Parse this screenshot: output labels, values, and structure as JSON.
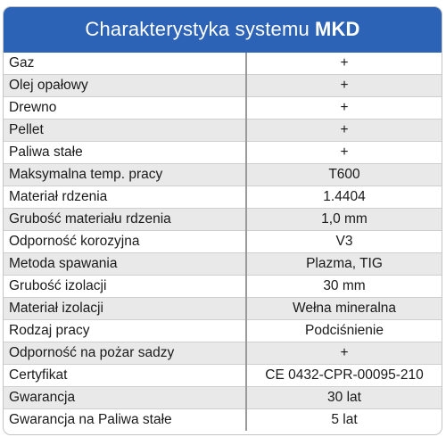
{
  "header": {
    "title_prefix": "Charakterystyka systemu",
    "title_bold": "MKD",
    "background_color": "#2d63b6"
  },
  "rows": [
    {
      "param": "Gaz",
      "value": "+"
    },
    {
      "param": "Olej opałowy",
      "value": "+"
    },
    {
      "param": "Drewno",
      "value": "+"
    },
    {
      "param": "Pellet",
      "value": "+"
    },
    {
      "param": "Paliwa stałe",
      "value": "+"
    },
    {
      "param": "Maksymalna temp. pracy",
      "value": "T600"
    },
    {
      "param": "Materiał rdzenia",
      "value": "1.4404"
    },
    {
      "param": "Grubość materiału rdzenia",
      "value": "1,0 mm"
    },
    {
      "param": "Odporność korozyjna",
      "value": "V3"
    },
    {
      "param": "Metoda spawania",
      "value": "Plazma, TIG"
    },
    {
      "param": "Grubość izolacji",
      "value": "30 mm"
    },
    {
      "param": "Materiał izolacji",
      "value": "Wełna mineralna"
    },
    {
      "param": "Rodzaj pracy",
      "value": "Podciśnienie"
    },
    {
      "param": "Odporność na pożar sadzy",
      "value": "+"
    },
    {
      "param": "Certyfikat",
      "value": "CE 0432-CPR-00095-210"
    },
    {
      "param": "Gwarancja",
      "value": "30 lat"
    },
    {
      "param": "Gwarancja na Paliwa stałe",
      "value": "5 lat"
    }
  ]
}
